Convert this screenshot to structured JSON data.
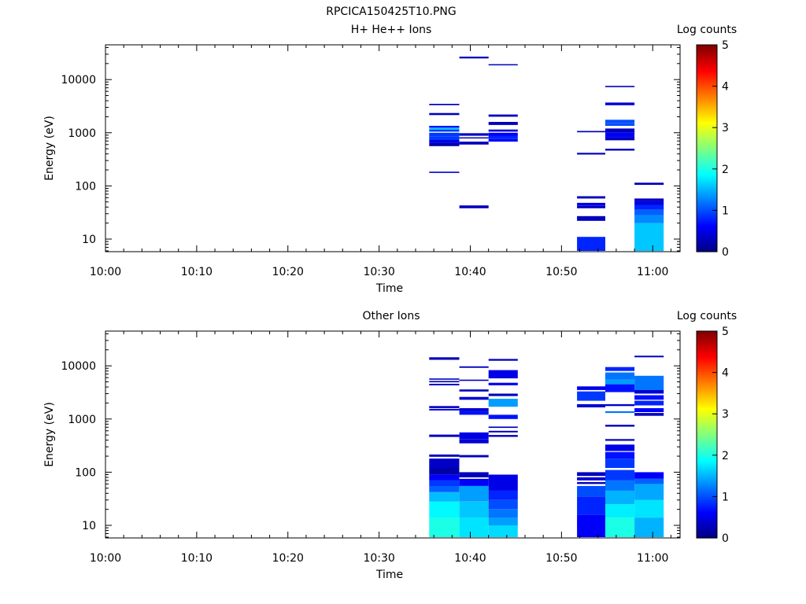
{
  "figure_title": "RPCICA150425T10.PNG",
  "chart_data": [
    {
      "type": "heatmap",
      "title": "H+ He++ Ions",
      "xlabel": "Time",
      "ylabel": "Energy (eV)",
      "x_ticks": [
        "10:00",
        "10:10",
        "10:20",
        "10:30",
        "10:40",
        "10:50",
        "11:00"
      ],
      "x_range_minutes": [
        0,
        63
      ],
      "y_scale": "log",
      "y_ticks": [
        "10",
        "100",
        "1000",
        "10000"
      ],
      "y_range": [
        5.8,
        45000
      ],
      "colorbar": {
        "label": "Log counts",
        "ticks": [
          "0",
          "1",
          "2",
          "3",
          "4",
          "5"
        ],
        "range": [
          0,
          5
        ],
        "colormap": "jet"
      },
      "columns": [
        {
          "t0": 35.5,
          "t1": 38.8,
          "bins": [
            [
              175,
              185,
              0.35
            ],
            [
              560,
              640,
              0.2
            ],
            [
              640,
              730,
              0.5
            ],
            [
              730,
              860,
              0.9
            ],
            [
              860,
              1000,
              0.9
            ],
            [
              1050,
              1150,
              0.9
            ],
            [
              1150,
              1250,
              1.6
            ],
            [
              1250,
              1350,
              0.7
            ],
            [
              2150,
              2350,
              0.3
            ],
            [
              3300,
              3500,
              0.3
            ]
          ]
        },
        {
          "t0": 38.8,
          "t1": 42,
          "bins": [
            [
              38,
              43,
              0.3
            ],
            [
              600,
              680,
              0.3
            ],
            [
              780,
              820,
              0.3
            ],
            [
              880,
              980,
              0.3
            ],
            [
              25000,
              27000,
              0.3
            ]
          ]
        },
        {
          "t0": 42,
          "t1": 45.2,
          "bins": [
            [
              680,
              760,
              0.6
            ],
            [
              760,
              880,
              0.8
            ],
            [
              880,
              1000,
              0.6
            ],
            [
              1050,
              1150,
              0.4
            ],
            [
              1400,
              1600,
              0.3
            ],
            [
              2000,
              2200,
              0.3
            ],
            [
              18500,
              19500,
              0.3
            ]
          ]
        },
        {
          "t0": 51.7,
          "t1": 54.8,
          "bins": [
            [
              6,
              11,
              0.8
            ],
            [
              22,
              27,
              0.3
            ],
            [
              38,
              42,
              0.3
            ],
            [
              42,
              48,
              0.5
            ],
            [
              58,
              64,
              0.3
            ],
            [
              390,
              420,
              0.3
            ],
            [
              1020,
              1080,
              0.3
            ]
          ]
        },
        {
          "t0": 54.8,
          "t1": 58,
          "bins": [
            [
              460,
              500,
              0.3
            ],
            [
              720,
              820,
              0.3
            ],
            [
              820,
              1000,
              0.6
            ],
            [
              1000,
              1200,
              0.3
            ],
            [
              1350,
              1500,
              1.0
            ],
            [
              1500,
              1750,
              1.0
            ],
            [
              3300,
              3700,
              0.4
            ],
            [
              7200,
              7600,
              0.3
            ]
          ]
        },
        {
          "t0": 58,
          "t1": 61.2,
          "bins": [
            [
              6,
              20,
              1.6
            ],
            [
              20,
              28,
              1.3
            ],
            [
              28,
              36,
              1.1
            ],
            [
              36,
              44,
              0.8
            ],
            [
              44,
              52,
              0.5
            ],
            [
              52,
              58,
              0.3
            ],
            [
              105,
              115,
              0.3
            ]
          ]
        }
      ]
    },
    {
      "type": "heatmap",
      "title": "Other Ions",
      "xlabel": "Time",
      "ylabel": "Energy (eV)",
      "x_ticks": [
        "10:00",
        "10:10",
        "10:20",
        "10:30",
        "10:40",
        "10:50",
        "11:00"
      ],
      "x_range_minutes": [
        0,
        63
      ],
      "y_scale": "log",
      "y_ticks": [
        "10",
        "100",
        "1000",
        "10000"
      ],
      "y_range": [
        5.8,
        45000
      ],
      "colorbar": {
        "label": "Log counts",
        "ticks": [
          "0",
          "1",
          "2",
          "3",
          "4",
          "5"
        ],
        "range": [
          0,
          5
        ],
        "colormap": "jet"
      },
      "columns": [
        {
          "t0": 35.5,
          "t1": 38.8,
          "bins": [
            [
              6,
              14,
              2.0
            ],
            [
              14,
              28,
              1.85
            ],
            [
              28,
              42,
              1.55
            ],
            [
              42,
              55,
              1.1
            ],
            [
              55,
              70,
              0.9
            ],
            [
              70,
              90,
              0.6
            ],
            [
              90,
              120,
              0.2
            ],
            [
              120,
              180,
              0.35
            ],
            [
              195,
              215,
              0.3
            ],
            [
              460,
              510,
              0.3
            ],
            [
              1450,
              1550,
              0.5
            ],
            [
              1600,
              1750,
              0.3
            ],
            [
              4300,
              4600,
              0.3
            ],
            [
              4900,
              5200,
              0.3
            ],
            [
              5500,
              5800,
              0.3
            ],
            [
              13000,
              14500,
              0.3
            ]
          ]
        },
        {
          "t0": 38.8,
          "t1": 42,
          "bins": [
            [
              6,
              14,
              1.75
            ],
            [
              14,
              28,
              1.6
            ],
            [
              28,
              55,
              1.4
            ],
            [
              55,
              75,
              0.6
            ],
            [
              80,
              100,
              0.3
            ],
            [
              190,
              210,
              0.3
            ],
            [
              350,
              420,
              0.4
            ],
            [
              420,
              560,
              0.5
            ],
            [
              1200,
              1400,
              0.7
            ],
            [
              1400,
              1600,
              0.4
            ],
            [
              2300,
              2600,
              0.4
            ],
            [
              3300,
              3600,
              0.3
            ],
            [
              5200,
              5500,
              0.3
            ],
            [
              9200,
              9800,
              0.3
            ]
          ]
        },
        {
          "t0": 42,
          "t1": 45.2,
          "bins": [
            [
              6,
              10,
              1.7
            ],
            [
              10,
              14,
              1.4
            ],
            [
              14,
              20,
              1.2
            ],
            [
              20,
              30,
              1.0
            ],
            [
              30,
              45,
              0.8
            ],
            [
              45,
              90,
              0.5
            ],
            [
              460,
              500,
              0.3
            ],
            [
              560,
              600,
              0.3
            ],
            [
              680,
              720,
              0.3
            ],
            [
              1000,
              1200,
              0.7
            ],
            [
              1700,
              2400,
              1.4
            ],
            [
              2700,
              3000,
              0.3
            ],
            [
              4300,
              4800,
              0.6
            ],
            [
              5800,
              8300,
              0.5
            ],
            [
              12500,
              13500,
              0.3
            ]
          ]
        },
        {
          "t0": 51.7,
          "t1": 54.8,
          "bins": [
            [
              6,
              16,
              0.6
            ],
            [
              16,
              35,
              0.8
            ],
            [
              35,
              55,
              1.0
            ],
            [
              60,
              65,
              0.3
            ],
            [
              70,
              80,
              0.4
            ],
            [
              85,
              100,
              0.3
            ],
            [
              1650,
              1900,
              0.4
            ],
            [
              2200,
              3300,
              0.9
            ],
            [
              3500,
              4100,
              0.5
            ]
          ]
        },
        {
          "t0": 54.8,
          "t1": 58,
          "bins": [
            [
              6,
              14,
              2.0
            ],
            [
              14,
              25,
              1.8
            ],
            [
              25,
              45,
              1.5
            ],
            [
              45,
              70,
              1.2
            ],
            [
              70,
              110,
              0.9
            ],
            [
              120,
              180,
              0.9
            ],
            [
              180,
              240,
              0.7
            ],
            [
              250,
              330,
              0.5
            ],
            [
              390,
              420,
              0.3
            ],
            [
              720,
              780,
              0.3
            ],
            [
              1300,
              1400,
              1.2
            ],
            [
              1750,
              1900,
              0.4
            ],
            [
              3200,
              4500,
              0.7
            ],
            [
              4500,
              5500,
              1.4
            ],
            [
              5500,
              7500,
              1.2
            ],
            [
              8000,
              9500,
              0.8
            ]
          ]
        },
        {
          "t0": 58,
          "t1": 61.2,
          "bins": [
            [
              6,
              14,
              1.5
            ],
            [
              14,
              30,
              1.75
            ],
            [
              30,
              60,
              1.45
            ],
            [
              60,
              75,
              1.1
            ],
            [
              75,
              100,
              0.6
            ],
            [
              1150,
              1300,
              0.3
            ],
            [
              1350,
              1600,
              0.6
            ],
            [
              1800,
              2200,
              0.8
            ],
            [
              2300,
              2800,
              0.7
            ],
            [
              3000,
              3500,
              0.4
            ],
            [
              3500,
              6500,
              1.2
            ],
            [
              14500,
              15500,
              0.3
            ]
          ]
        }
      ]
    }
  ]
}
